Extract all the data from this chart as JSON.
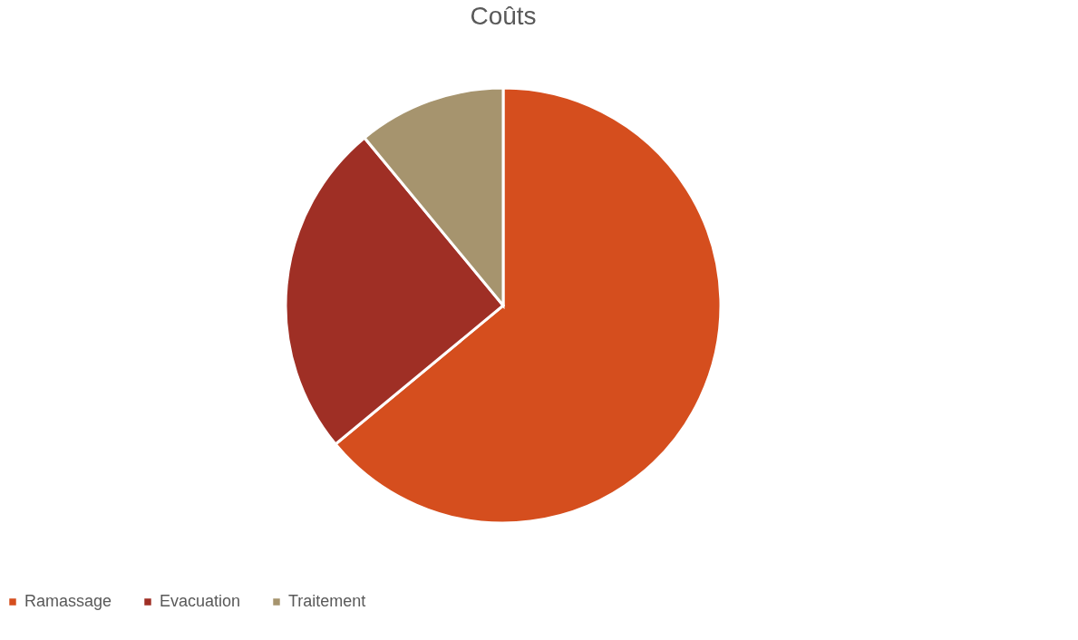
{
  "chart_data": {
    "type": "pie",
    "title": "Coûts",
    "categories": [
      "Ramassage",
      "Evacuation",
      "Traitement"
    ],
    "values": [
      64,
      25,
      11
    ],
    "colors": [
      "#d54e1e",
      "#9f2f25",
      "#a6946e"
    ],
    "legend": "bottom"
  }
}
